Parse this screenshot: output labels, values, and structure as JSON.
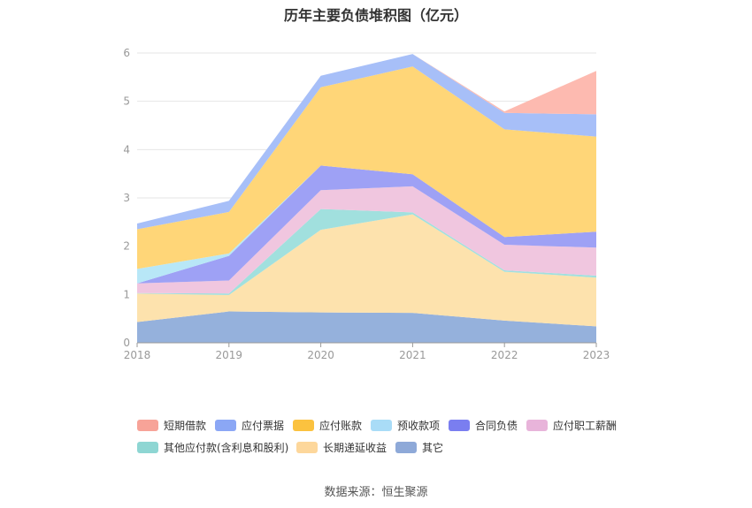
{
  "chart_data": {
    "type": "area",
    "stacked": true,
    "title": "历年主要负债堆积图（亿元）",
    "xlabel": "",
    "ylabel": "",
    "categories": [
      "2018",
      "2019",
      "2020",
      "2021",
      "2022",
      "2023"
    ],
    "ylim": [
      0,
      6
    ],
    "yticks": [
      0,
      1,
      2,
      3,
      4,
      5,
      6
    ],
    "grid": true,
    "legend_position": "bottom",
    "series": [
      {
        "name": "其它",
        "color": "#95b1dc",
        "values": [
          0.43,
          0.65,
          0.63,
          0.62,
          0.46,
          0.34
        ]
      },
      {
        "name": "长期递延收益",
        "color": "#fde2ad",
        "values": [
          0.59,
          0.34,
          1.71,
          2.04,
          1.01,
          1.01
        ]
      },
      {
        "name": "其他应付款(含利息和股利)",
        "color": "#a1e0de",
        "values": [
          0.01,
          0.03,
          0.43,
          0.04,
          0.03,
          0.04
        ]
      },
      {
        "name": "应付职工薪酬",
        "color": "#f0c6df",
        "values": [
          0.2,
          0.27,
          0.39,
          0.54,
          0.53,
          0.58
        ]
      },
      {
        "name": "合同负债",
        "color": "#9ea1f5",
        "values": [
          0,
          0.51,
          0.51,
          0.25,
          0.16,
          0.33
        ]
      },
      {
        "name": "预收款项",
        "color": "#b8e7f7",
        "values": [
          0.3,
          0.05,
          0,
          0,
          0,
          0
        ]
      },
      {
        "name": "应付账款",
        "color": "#ffd678",
        "values": [
          0.82,
          0.86,
          1.62,
          2.23,
          2.23,
          1.97
        ]
      },
      {
        "name": "应付票据",
        "color": "#a7bff8",
        "values": [
          0.12,
          0.23,
          0.24,
          0.26,
          0.34,
          0.46
        ]
      },
      {
        "name": "短期借款",
        "color": "#fdbab0",
        "values": [
          0,
          0,
          0,
          0,
          0.03,
          0.9
        ]
      }
    ],
    "legend": [
      {
        "name": "短期借款",
        "color": "#f7a398"
      },
      {
        "name": "应付票据",
        "color": "#8ba7f5"
      },
      {
        "name": "应付账款",
        "color": "#fbc23f"
      },
      {
        "name": "预收款项",
        "color": "#a9dcf7"
      },
      {
        "name": "合同负债",
        "color": "#7a7ef0"
      },
      {
        "name": "应付职工薪酬",
        "color": "#e8b4da"
      },
      {
        "name": "其他应付款(含利息和股利)",
        "color": "#8ed6d3"
      },
      {
        "name": "长期递延收益",
        "color": "#fdd79b"
      },
      {
        "name": "其它",
        "color": "#8ea9d8"
      }
    ]
  },
  "source": "数据来源：恒生聚源"
}
